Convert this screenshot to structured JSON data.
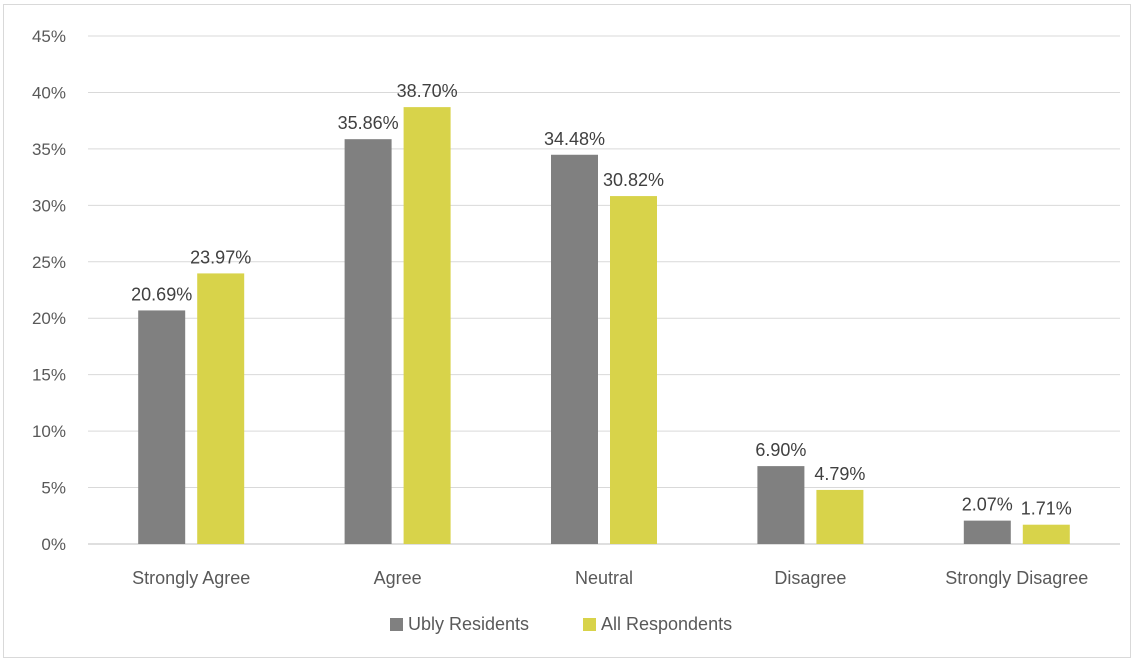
{
  "chart_data": {
    "type": "bar",
    "categories": [
      "Strongly Agree",
      "Agree",
      "Neutral",
      "Disagree",
      "Strongly Disagree"
    ],
    "series": [
      {
        "name": "Ubly Residents",
        "color": "#808080",
        "values": [
          20.69,
          35.86,
          34.48,
          6.9,
          2.07
        ],
        "labels": [
          "20.69%",
          "35.86%",
          "34.48%",
          "6.90%",
          "2.07%"
        ]
      },
      {
        "name": "All Respondents",
        "color": "#d8d34a",
        "values": [
          23.97,
          38.7,
          30.82,
          4.79,
          1.71
        ],
        "labels": [
          "23.97%",
          "38.70%",
          "30.82%",
          "4.79%",
          "1.71%"
        ]
      }
    ],
    "ylim": [
      0,
      45
    ],
    "yticks": [
      0,
      5,
      10,
      15,
      20,
      25,
      30,
      35,
      40,
      45
    ],
    "ytick_labels": [
      "0%",
      "5%",
      "10%",
      "15%",
      "20%",
      "25%",
      "30%",
      "35%",
      "40%",
      "45%"
    ],
    "grid": true,
    "legend_position": "bottom",
    "title": "",
    "xlabel": "",
    "ylabel": ""
  }
}
